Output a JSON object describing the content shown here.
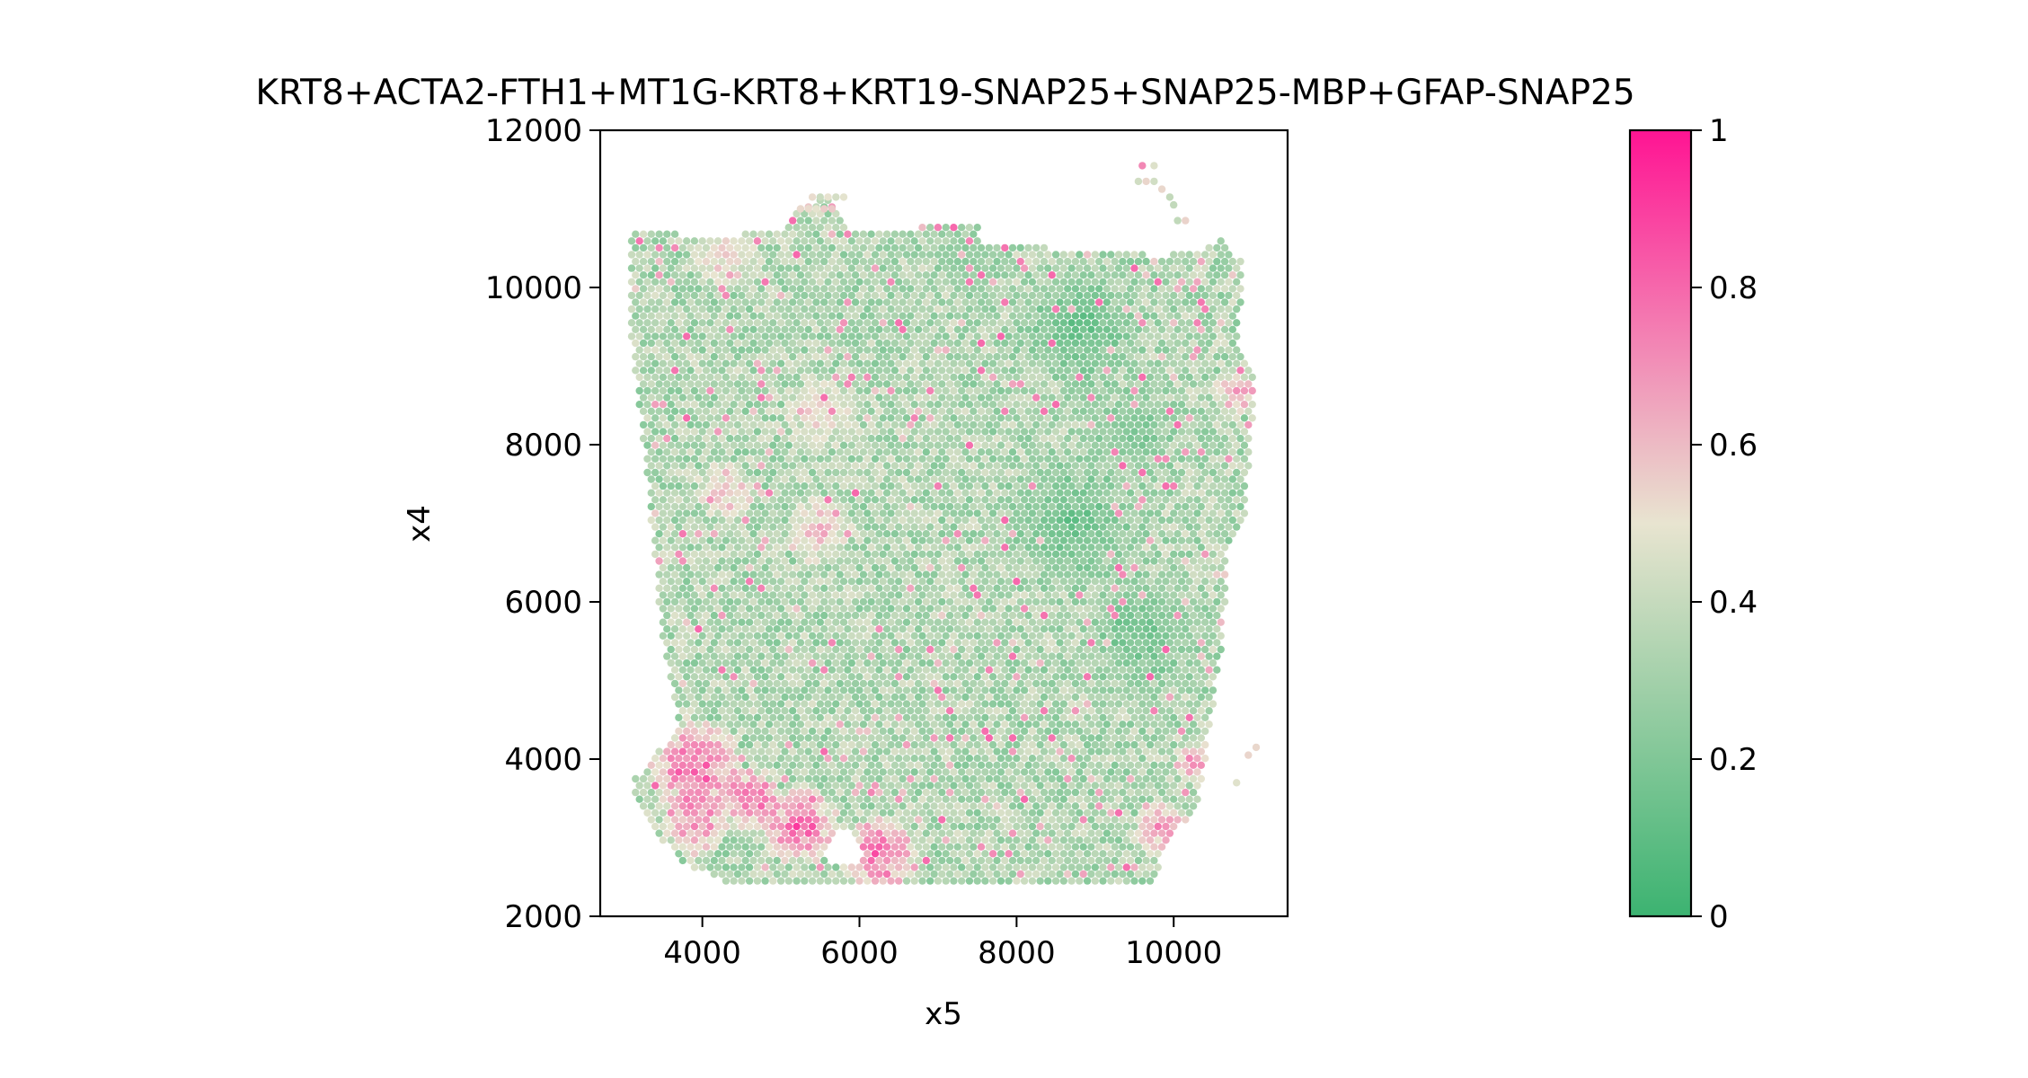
{
  "chart_data": {
    "type": "scatter",
    "title": "KRT8+ACTA2-FTH1+MT1G-KRT8+KRT19-SNAP25+SNAP25-MBP+GFAP-SNAP25",
    "xlabel": "x5",
    "ylabel": "x4",
    "xlim": [
      2700,
      11450
    ],
    "ylim": [
      2000,
      12000
    ],
    "x_ticks": [
      4000,
      6000,
      8000,
      10000
    ],
    "y_ticks": [
      2000,
      4000,
      6000,
      8000,
      10000,
      12000
    ],
    "x_tick_labels": [
      "4000",
      "6000",
      "8000",
      "10000"
    ],
    "y_tick_labels": [
      "2000",
      "4000",
      "6000",
      "8000",
      "10000",
      "12000"
    ],
    "grid": false,
    "colorbar": {
      "min": 0,
      "max": 1,
      "ticks": [
        0,
        0.2,
        0.4,
        0.6,
        0.8,
        1
      ],
      "tick_labels": [
        "0",
        "0.2",
        "0.4",
        "0.6",
        "0.8",
        "1"
      ],
      "colors": [
        "#3cb371",
        "#e8e4d0",
        "#ff1493"
      ]
    },
    "spot_pitch": 100,
    "tissue_outline": [
      [
        3100,
        10700
      ],
      [
        3500,
        10700
      ],
      [
        4000,
        10650
      ],
      [
        5000,
        10700
      ],
      [
        5200,
        10950
      ],
      [
        5600,
        11200
      ],
      [
        5900,
        10750
      ],
      [
        6700,
        10700
      ],
      [
        6900,
        10850
      ],
      [
        7500,
        10800
      ],
      [
        7600,
        10550
      ],
      [
        8500,
        10500
      ],
      [
        9200,
        10500
      ],
      [
        9700,
        10400
      ],
      [
        10300,
        10450
      ],
      [
        10600,
        10600
      ],
      [
        10900,
        10300
      ],
      [
        10800,
        9300
      ],
      [
        11050,
        8800
      ],
      [
        10900,
        7000
      ],
      [
        10700,
        6700
      ],
      [
        10600,
        5300
      ],
      [
        10400,
        4000
      ],
      [
        10300,
        3400
      ],
      [
        9950,
        2950
      ],
      [
        9700,
        2400
      ],
      [
        6500,
        2400
      ],
      [
        4300,
        2450
      ],
      [
        3700,
        2700
      ],
      [
        3300,
        3200
      ],
      [
        3100,
        3700
      ],
      [
        3700,
        4400
      ],
      [
        3500,
        5500
      ],
      [
        3400,
        6500
      ],
      [
        3250,
        8000
      ],
      [
        3050,
        9700
      ]
    ],
    "hotspots": [
      {
        "x": 3900,
        "y": 3900,
        "value": 0.92,
        "radius": 650
      },
      {
        "x": 4600,
        "y": 3500,
        "value": 0.95,
        "radius": 420
      },
      {
        "x": 5250,
        "y": 3150,
        "value": 0.95,
        "radius": 520
      },
      {
        "x": 6250,
        "y": 2800,
        "value": 0.93,
        "radius": 520
      },
      {
        "x": 3900,
        "y": 3200,
        "value": 0.85,
        "radius": 450
      },
      {
        "x": 9850,
        "y": 3100,
        "value": 0.85,
        "radius": 380
      },
      {
        "x": 10300,
        "y": 3950,
        "value": 0.8,
        "radius": 300
      },
      {
        "x": 10800,
        "y": 8700,
        "value": 0.82,
        "radius": 300
      },
      {
        "x": 4300,
        "y": 7400,
        "value": 0.7,
        "radius": 400
      },
      {
        "x": 5500,
        "y": 6900,
        "value": 0.68,
        "radius": 450
      },
      {
        "x": 4300,
        "y": 10400,
        "value": 0.6,
        "radius": 500
      },
      {
        "x": 5500,
        "y": 8400,
        "value": 0.6,
        "radius": 500
      }
    ],
    "coldspots": [
      {
        "x": 8800,
        "y": 9500,
        "value": 0.12,
        "radius": 900
      },
      {
        "x": 8700,
        "y": 7000,
        "value": 0.14,
        "radius": 1000
      },
      {
        "x": 9600,
        "y": 5600,
        "value": 0.15,
        "radius": 900
      },
      {
        "x": 7400,
        "y": 10400,
        "value": 0.25,
        "radius": 600
      },
      {
        "x": 9500,
        "y": 8200,
        "value": 0.18,
        "radius": 600
      }
    ],
    "hole": {
      "x": 5800,
      "y": 2850,
      "radius": 220
    }
  }
}
